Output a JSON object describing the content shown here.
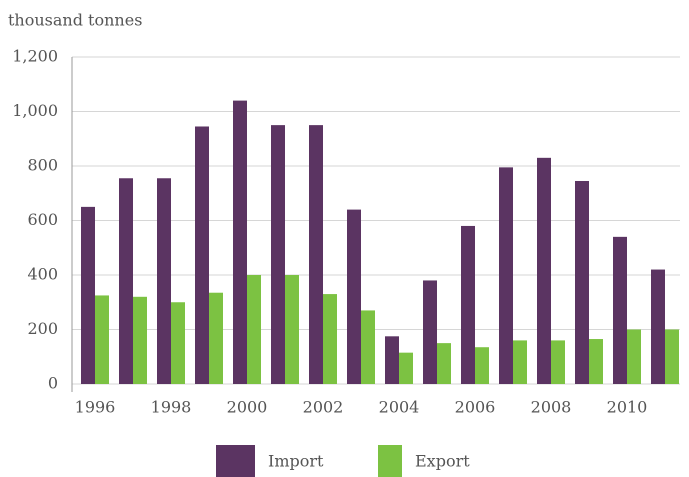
{
  "chart_data": {
    "type": "bar",
    "y_label": "thousand tonnes",
    "categories": [
      "1996",
      null,
      "1998",
      null,
      "2000",
      null,
      "2002",
      null,
      "2004",
      null,
      "2006",
      null,
      "2008",
      null,
      "2010",
      null
    ],
    "series": [
      {
        "name": "Import",
        "color": "#5b3462",
        "values": [
          650,
          755,
          755,
          945,
          1040,
          950,
          950,
          640,
          175,
          380,
          580,
          795,
          830,
          745,
          540,
          420
        ]
      },
      {
        "name": "Export",
        "color": "#7cc242",
        "values": [
          325,
          320,
          300,
          335,
          400,
          400,
          330,
          270,
          115,
          150,
          135,
          160,
          160,
          165,
          200,
          200
        ]
      }
    ],
    "ylim": [
      0,
      1200
    ],
    "yticks": [
      0,
      200,
      400,
      600,
      800,
      {
        "value": 1000,
        "label": "1,000"
      },
      {
        "value": 1200,
        "label": "1,200"
      }
    ],
    "grid": true
  }
}
